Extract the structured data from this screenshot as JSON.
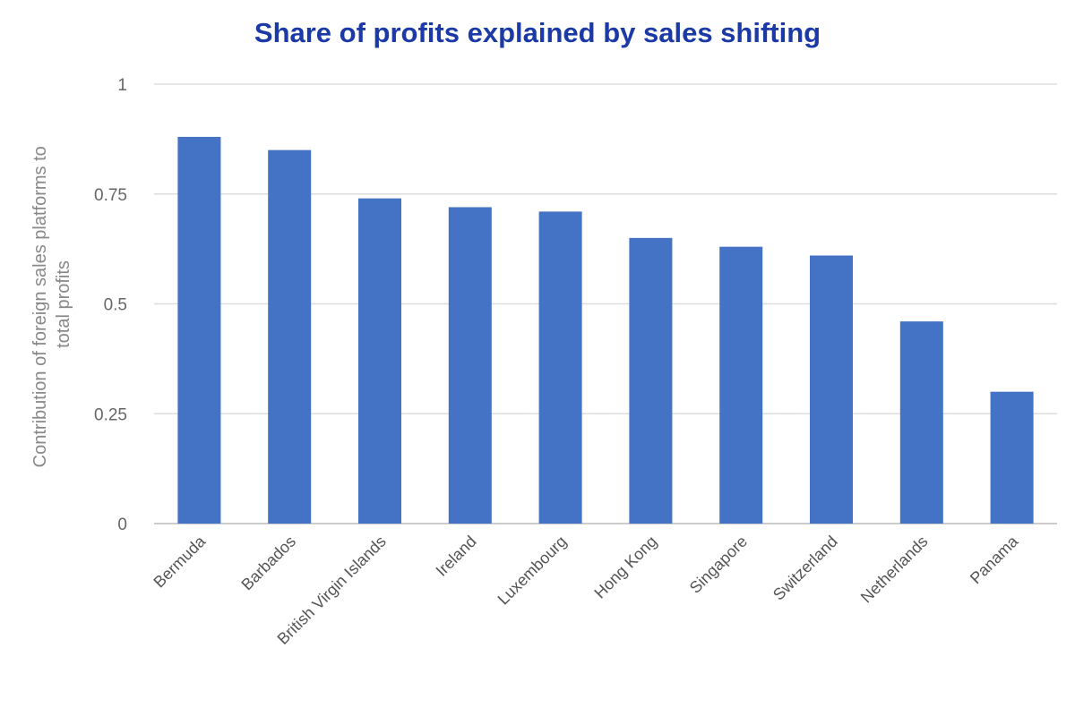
{
  "chart_data": {
    "type": "bar",
    "title": "Share of profits explained by sales shifting",
    "xlabel": "",
    "ylabel": "Contribution of foreign sales platforms to total profits",
    "ylabel_lines": [
      "Contribution of foreign sales platforms to",
      "total profits"
    ],
    "ylim": [
      0,
      1
    ],
    "yticks": [
      0,
      0.25,
      0.5,
      0.75,
      1
    ],
    "ytick_labels": [
      "0",
      "0.25",
      "0.5",
      "0.75",
      "1"
    ],
    "grid": true,
    "categories": [
      "Bermuda",
      "Barbados",
      "British Virgin Islands",
      "Ireland",
      "Luxembourg",
      "Hong Kong",
      "Singapore",
      "Switzerland",
      "Netherlands",
      "Panama"
    ],
    "values": [
      0.88,
      0.85,
      0.74,
      0.72,
      0.71,
      0.65,
      0.63,
      0.61,
      0.46,
      0.3
    ],
    "bar_color": "#4472c4",
    "title_color": "#1b3aa6"
  }
}
